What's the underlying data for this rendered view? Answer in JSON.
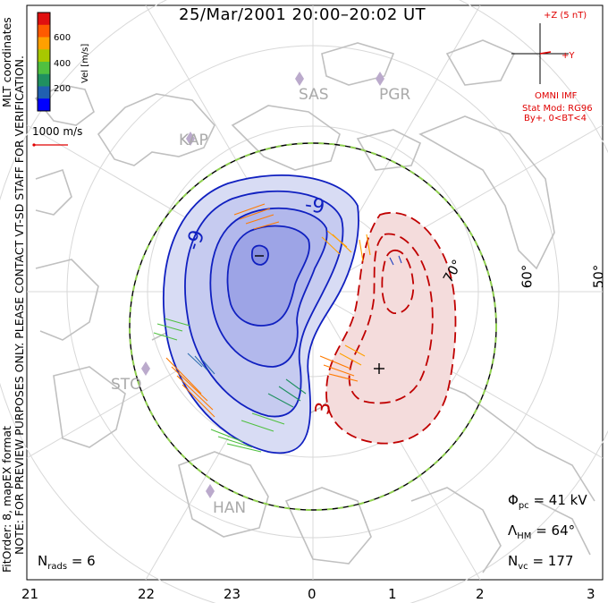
{
  "title": "25/Mar/2001 20:00–20:02 UT",
  "colorbar": {
    "label": "Vel [m/s]",
    "ticks": [
      "600",
      "400",
      "200"
    ],
    "colors": [
      "#e01010",
      "#ff5a00",
      "#ffa000",
      "#a8c800",
      "#50c040",
      "#209060",
      "#2060b0",
      "#0000ff"
    ]
  },
  "coordinates_label": "MLT coordinates",
  "scale_vector_label": "1000 m/s",
  "verification_note": "NOTE: FOR PREVIEW PURPOSES ONLY. PLEASE CONTACT VT-SD STAFF FOR VERIFICATION.",
  "fit_note": "FitOrder: 8, mapEX format",
  "imf": {
    "z_label": "+Z (5 nT)",
    "y_label": "+Y",
    "source": "OMNI IMF",
    "model": "Stat Mod: RG96",
    "condition": "By+, 0<BT<4"
  },
  "stations": [
    "SAS",
    "PGR",
    "KAP",
    "STO",
    "HAN"
  ],
  "latitude_labels": [
    "70°",
    "60°",
    "50°"
  ],
  "contour_labels": [
    "-9",
    "-9",
    "3"
  ],
  "extremum_markers": [
    "−",
    "+"
  ],
  "stats": {
    "phi_pc_label": "Φ",
    "phi_pc_sub": "pc",
    "phi_pc_value": "= 41 kV",
    "lambda_hm_label": "Λ",
    "lambda_hm_sub": "HM",
    "lambda_hm_value": "= 64°",
    "n_vc_label": "N",
    "n_vc_sub": "vc",
    "n_vc_value": "= 177",
    "n_rads_label": "N",
    "n_rads_sub": "rads",
    "n_rads_value": "= 6"
  },
  "mlt_ticks": [
    "21",
    "22",
    "23",
    "0",
    "1",
    "2",
    "3"
  ],
  "colors": {
    "negative_cell": "#1020c0",
    "positive_cell": "#c00000",
    "hmb_boundary": "#90d050",
    "coastline": "#c0c0c0",
    "grid": "#d8d8d8",
    "imf": "#e00000"
  }
}
